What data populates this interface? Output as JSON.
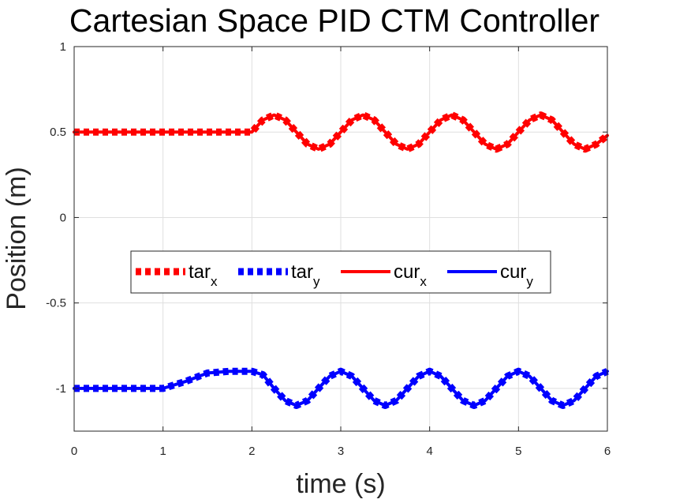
{
  "chart_data": {
    "type": "line",
    "title": "Cartesian Space PID CTM Controller",
    "xlabel": "time (s)",
    "ylabel": "Position (m)",
    "xlim": [
      0,
      6
    ],
    "ylim": [
      -1.25,
      1
    ],
    "xticks": [
      0,
      1,
      2,
      3,
      4,
      5,
      6
    ],
    "yticks": [
      -1,
      -0.5,
      0,
      0.5,
      1
    ],
    "xtick_labels": [
      "0",
      "1",
      "2",
      "3",
      "4",
      "5",
      "6"
    ],
    "ytick_labels": [
      "-1",
      "-0.5",
      "0",
      "0.5",
      "1"
    ],
    "grid": true,
    "legend_position": "center-left",
    "legend": [
      {
        "base": "tar",
        "sub": "x",
        "style": "dashed",
        "color": "#ff0000"
      },
      {
        "base": "tar",
        "sub": "y",
        "style": "dashed",
        "color": "#0000ff"
      },
      {
        "base": "cur",
        "sub": "x",
        "style": "solid",
        "color": "#ff0000"
      },
      {
        "base": "cur",
        "sub": "y",
        "style": "solid",
        "color": "#0000ff"
      }
    ],
    "series": [
      {
        "legend_index": 0,
        "color": "#ff0000",
        "style": "dashed",
        "x": [
          0,
          0.5,
          1,
          1.5,
          2,
          2.05,
          2.125,
          2.25,
          2.375,
          2.5,
          2.625,
          2.75,
          2.875,
          3,
          3.125,
          3.25,
          3.375,
          3.5,
          3.625,
          3.75,
          3.875,
          4,
          4.125,
          4.25,
          4.375,
          4.5,
          4.625,
          4.75,
          4.875,
          5,
          5.125,
          5.25,
          5.375,
          5.5,
          5.625,
          5.75,
          5.875,
          6
        ],
        "y": [
          0.5,
          0.5,
          0.5,
          0.5,
          0.5,
          0.53,
          0.571,
          0.6,
          0.571,
          0.5,
          0.429,
          0.4,
          0.429,
          0.5,
          0.571,
          0.6,
          0.571,
          0.5,
          0.429,
          0.4,
          0.429,
          0.5,
          0.571,
          0.6,
          0.571,
          0.5,
          0.429,
          0.4,
          0.429,
          0.5,
          0.571,
          0.6,
          0.571,
          0.5,
          0.429,
          0.4,
          0.429,
          0.48
        ]
      },
      {
        "legend_index": 1,
        "color": "#0000ff",
        "style": "dashed",
        "x": [
          0,
          0.5,
          1,
          1.25,
          1.5,
          1.75,
          2,
          2.125,
          2.25,
          2.375,
          2.5,
          2.625,
          2.75,
          2.875,
          3,
          3.125,
          3.25,
          3.375,
          3.5,
          3.625,
          3.75,
          3.875,
          4,
          4.125,
          4.25,
          4.375,
          4.5,
          4.625,
          4.75,
          4.875,
          5,
          5.125,
          5.25,
          5.375,
          5.5,
          5.625,
          5.75,
          5.875,
          6
        ],
        "y": [
          -1,
          -1,
          -1,
          -0.96,
          -0.91,
          -0.9,
          -0.9,
          -0.92,
          -1.0,
          -1.071,
          -1.1,
          -1.071,
          -1.0,
          -0.929,
          -0.9,
          -0.929,
          -1.0,
          -1.071,
          -1.1,
          -1.071,
          -1.0,
          -0.929,
          -0.9,
          -0.929,
          -1.0,
          -1.071,
          -1.1,
          -1.071,
          -1.0,
          -0.929,
          -0.9,
          -0.929,
          -1.0,
          -1.071,
          -1.1,
          -1.071,
          -1.0,
          -0.929,
          -0.9
        ]
      },
      {
        "legend_index": 2,
        "color": "#ff0000",
        "style": "solid",
        "x": [
          0,
          0.5,
          1,
          1.5,
          2,
          2.05,
          2.125,
          2.25,
          2.375,
          2.5,
          2.625,
          2.75,
          2.875,
          3,
          3.125,
          3.25,
          3.375,
          3.5,
          3.625,
          3.75,
          3.875,
          4,
          4.125,
          4.25,
          4.375,
          4.5,
          4.625,
          4.75,
          4.875,
          5,
          5.125,
          5.25,
          5.375,
          5.5,
          5.625,
          5.75,
          5.875,
          6
        ],
        "y": [
          0.5,
          0.5,
          0.5,
          0.5,
          0.5,
          0.53,
          0.571,
          0.6,
          0.571,
          0.5,
          0.429,
          0.4,
          0.429,
          0.5,
          0.571,
          0.6,
          0.571,
          0.5,
          0.429,
          0.4,
          0.429,
          0.5,
          0.571,
          0.6,
          0.571,
          0.5,
          0.429,
          0.4,
          0.429,
          0.5,
          0.571,
          0.6,
          0.571,
          0.5,
          0.429,
          0.4,
          0.429,
          0.48
        ]
      },
      {
        "legend_index": 3,
        "color": "#0000ff",
        "style": "solid",
        "x": [
          0,
          0.5,
          1,
          1.25,
          1.5,
          1.75,
          2,
          2.125,
          2.25,
          2.375,
          2.5,
          2.625,
          2.75,
          2.875,
          3,
          3.125,
          3.25,
          3.375,
          3.5,
          3.625,
          3.75,
          3.875,
          4,
          4.125,
          4.25,
          4.375,
          4.5,
          4.625,
          4.75,
          4.875,
          5,
          5.125,
          5.25,
          5.375,
          5.5,
          5.625,
          5.75,
          5.875,
          6
        ],
        "y": [
          -1,
          -1,
          -1,
          -0.96,
          -0.91,
          -0.9,
          -0.9,
          -0.92,
          -1.0,
          -1.071,
          -1.1,
          -1.071,
          -1.0,
          -0.929,
          -0.9,
          -0.929,
          -1.0,
          -1.071,
          -1.1,
          -1.071,
          -1.0,
          -0.929,
          -0.9,
          -0.929,
          -1.0,
          -1.071,
          -1.1,
          -1.071,
          -1.0,
          -0.929,
          -0.9,
          -0.929,
          -1.0,
          -1.071,
          -1.1,
          -1.071,
          -1.0,
          -0.929,
          -0.9
        ]
      }
    ]
  }
}
